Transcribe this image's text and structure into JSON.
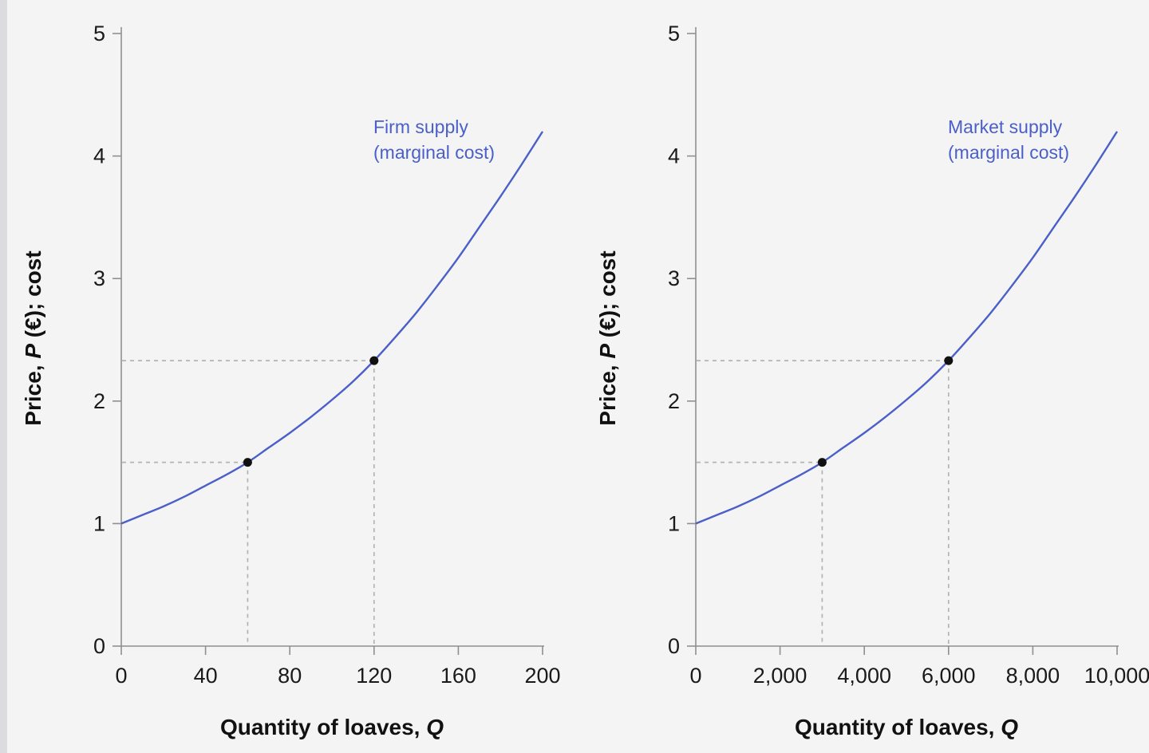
{
  "page": {
    "background": "#f4f4f5",
    "left_edge_color": "#dcdcde"
  },
  "chart_data": [
    {
      "type": "line",
      "title": "",
      "curve_label_line1": "Firm supply",
      "curve_label_line2": "(marginal cost)",
      "xlabel": {
        "pre": "Quantity of loaves, ",
        "var": "Q"
      },
      "ylabel": {
        "pre": "Price, ",
        "var": "P",
        "post": " (€); cost"
      },
      "xlim": [
        0,
        200
      ],
      "ylim": [
        0,
        5
      ],
      "xticks": [
        0,
        40,
        80,
        120,
        160,
        200
      ],
      "xtick_labels": [
        "0",
        "40",
        "80",
        "120",
        "160",
        "200"
      ],
      "yticks": [
        0,
        1,
        2,
        3,
        4,
        5
      ],
      "ytick_labels": [
        "0",
        "1",
        "2",
        "3",
        "4",
        "5"
      ],
      "series": [
        {
          "name": "Firm supply (marginal cost)",
          "x": [
            0,
            10,
            20,
            30,
            40,
            50,
            60,
            70,
            80,
            90,
            100,
            110,
            120,
            130,
            140,
            150,
            160,
            170,
            180,
            190,
            200
          ],
          "y": [
            1.0,
            1.07,
            1.14,
            1.22,
            1.31,
            1.4,
            1.5,
            1.62,
            1.74,
            1.87,
            2.01,
            2.16,
            2.33,
            2.52,
            2.72,
            2.94,
            3.17,
            3.42,
            3.67,
            3.93,
            4.2
          ]
        }
      ],
      "marked_points": [
        {
          "x": 60,
          "y": 1.5
        },
        {
          "x": 120,
          "y": 2.33
        }
      ],
      "grid": false,
      "legend": "none",
      "line_color": "#4a5fc8",
      "label_color": "#4a5fc8",
      "axis_color": "#8f8f8f",
      "guide_color": "#b3b3b3",
      "point_color": "#111111"
    },
    {
      "type": "line",
      "title": "",
      "curve_label_line1": "Market supply",
      "curve_label_line2": "(marginal cost)",
      "xlabel": {
        "pre": "Quantity of loaves, ",
        "var": "Q"
      },
      "ylabel": {
        "pre": "Price, ",
        "var": "P",
        "post": " (€); cost"
      },
      "xlim": [
        0,
        10000
      ],
      "ylim": [
        0,
        5
      ],
      "xticks": [
        0,
        2000,
        4000,
        6000,
        8000,
        10000
      ],
      "xtick_labels": [
        "0",
        "2,000",
        "4,000",
        "6,000",
        "8,000",
        "10,000"
      ],
      "yticks": [
        0,
        1,
        2,
        3,
        4,
        5
      ],
      "ytick_labels": [
        "0",
        "1",
        "2",
        "3",
        "4",
        "5"
      ],
      "series": [
        {
          "name": "Market supply (marginal cost)",
          "x": [
            0,
            500,
            1000,
            1500,
            2000,
            2500,
            3000,
            3500,
            4000,
            4500,
            5000,
            5500,
            6000,
            6500,
            7000,
            7500,
            8000,
            8500,
            9000,
            9500,
            10000
          ],
          "y": [
            1.0,
            1.07,
            1.14,
            1.22,
            1.31,
            1.4,
            1.5,
            1.62,
            1.74,
            1.87,
            2.01,
            2.16,
            2.33,
            2.52,
            2.72,
            2.94,
            3.17,
            3.42,
            3.67,
            3.93,
            4.2
          ]
        }
      ],
      "marked_points": [
        {
          "x": 3000,
          "y": 1.5
        },
        {
          "x": 6000,
          "y": 2.33
        }
      ],
      "grid": false,
      "legend": "none",
      "line_color": "#4a5fc8",
      "label_color": "#4a5fc8",
      "axis_color": "#8f8f8f",
      "guide_color": "#b3b3b3",
      "point_color": "#111111"
    }
  ]
}
